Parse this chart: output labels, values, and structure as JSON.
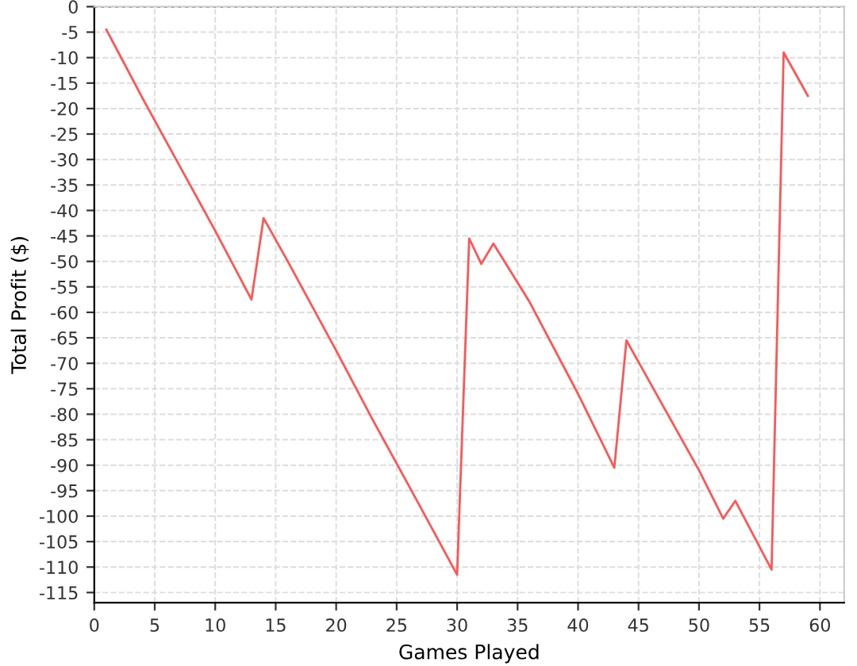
{
  "chart_data": {
    "type": "line",
    "xlabel": "Games Played",
    "ylabel": "Total Profit ($)",
    "series": [
      {
        "color": "#ff5555",
        "x": [
          1,
          2,
          4,
          7,
          10,
          13,
          14,
          16,
          20,
          23,
          26,
          30,
          31,
          32,
          33,
          36,
          40,
          43,
          44,
          46,
          50,
          52,
          53,
          56,
          57,
          59
        ],
        "values": [
          -4.5,
          -9,
          -18,
          -31,
          -44,
          -57.5,
          -41.5,
          -50,
          -67.5,
          -81,
          -94,
          -111.5,
          -45.5,
          -50.5,
          -46.5,
          -58,
          -76,
          -90.5,
          -65.5,
          -74,
          -91,
          -100.5,
          -97,
          -110.5,
          -9,
          -17.5
        ]
      }
    ],
    "xlim": [
      0,
      62
    ],
    "ylim": [
      -117,
      0
    ],
    "xticks": [
      0,
      5,
      10,
      15,
      20,
      25,
      30,
      35,
      40,
      45,
      50,
      55,
      60
    ],
    "yticks": [
      0,
      -5,
      -10,
      -15,
      -20,
      -25,
      -30,
      -35,
      -40,
      -45,
      -50,
      -55,
      -60,
      -65,
      -70,
      -75,
      -80,
      -85,
      -90,
      -95,
      -100,
      -105,
      -110,
      -115
    ],
    "ref_lines": [
      {
        "axis": "y",
        "value": 0,
        "color": "#6666bb",
        "line_style": "dotted"
      }
    ],
    "grid": true,
    "legend": false,
    "marker": "none",
    "line_style": "solid"
  }
}
